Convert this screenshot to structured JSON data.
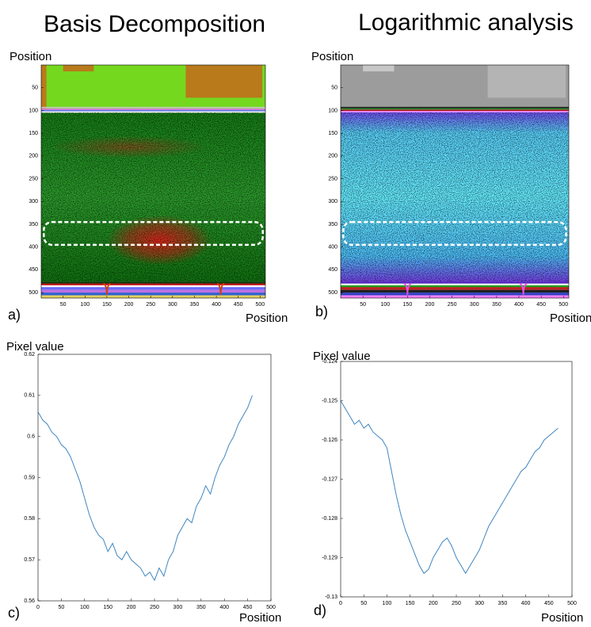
{
  "chart_data": [
    {
      "type": "image",
      "title": "Basis Decomposition",
      "label": "a)",
      "xlabel": "Position",
      "ylabel": "Position",
      "xlim": [
        0,
        512
      ],
      "ylim": [
        0,
        512
      ],
      "y_reversed": true,
      "xticks": [
        50,
        100,
        150,
        200,
        250,
        300,
        350,
        400,
        450,
        500
      ],
      "yticks": [
        50,
        100,
        150,
        200,
        250,
        300,
        350,
        400,
        450,
        500
      ]
    },
    {
      "type": "image",
      "title": "Logarithmic analysis",
      "label": "b)",
      "xlabel": "Position",
      "ylabel": "Position",
      "xlim": [
        0,
        512
      ],
      "ylim": [
        0,
        512
      ],
      "y_reversed": true,
      "xticks": [
        50,
        100,
        150,
        200,
        250,
        300,
        350,
        400,
        450,
        500
      ],
      "yticks": [
        50,
        100,
        150,
        200,
        250,
        300,
        350,
        400,
        450,
        500
      ]
    },
    {
      "type": "line",
      "label": "c)",
      "xlabel": "Position",
      "ylabel": "Pixel value",
      "color": "#3f86c0",
      "xlim": [
        0,
        500
      ],
      "ylim": [
        0.56,
        0.62
      ],
      "xticks": [
        0,
        50,
        100,
        150,
        200,
        250,
        300,
        350,
        400,
        450,
        500
      ],
      "yticks": [
        0.56,
        0.57,
        0.58,
        0.59,
        0.6,
        0.61,
        0.62
      ],
      "x": [
        0,
        10,
        20,
        30,
        40,
        50,
        60,
        70,
        80,
        90,
        100,
        110,
        120,
        130,
        140,
        150,
        160,
        170,
        180,
        190,
        200,
        210,
        220,
        230,
        240,
        250,
        260,
        270,
        280,
        290,
        300,
        310,
        320,
        330,
        340,
        350,
        360,
        370,
        380,
        390,
        400,
        410,
        420,
        430,
        440,
        450,
        460
      ],
      "values": [
        0.606,
        0.604,
        0.603,
        0.601,
        0.6,
        0.598,
        0.597,
        0.595,
        0.592,
        0.589,
        0.585,
        0.581,
        0.578,
        0.576,
        0.575,
        0.572,
        0.574,
        0.571,
        0.57,
        0.572,
        0.57,
        0.569,
        0.568,
        0.566,
        0.567,
        0.565,
        0.568,
        0.566,
        0.57,
        0.572,
        0.576,
        0.578,
        0.58,
        0.579,
        0.583,
        0.585,
        0.588,
        0.586,
        0.59,
        0.593,
        0.595,
        0.598,
        0.6,
        0.603,
        0.605,
        0.607,
        0.61
      ]
    },
    {
      "type": "line",
      "label": "d)",
      "xlabel": "Position",
      "ylabel": "Pixel value",
      "color": "#3f86c0",
      "xlim": [
        0,
        500
      ],
      "ylim": [
        -0.13,
        -0.124
      ],
      "xticks": [
        0,
        50,
        100,
        150,
        200,
        250,
        300,
        350,
        400,
        450,
        500
      ],
      "yticks": [
        -0.13,
        -0.129,
        -0.128,
        -0.127,
        -0.126,
        -0.125,
        -0.124
      ],
      "x": [
        0,
        10,
        20,
        30,
        40,
        50,
        60,
        70,
        80,
        90,
        100,
        110,
        120,
        130,
        140,
        150,
        160,
        170,
        180,
        190,
        200,
        210,
        220,
        230,
        240,
        250,
        260,
        270,
        280,
        290,
        300,
        310,
        320,
        330,
        340,
        350,
        360,
        370,
        380,
        390,
        400,
        410,
        420,
        430,
        440,
        450,
        460,
        470
      ],
      "values": [
        -0.125,
        -0.1252,
        -0.1254,
        -0.1256,
        -0.1255,
        -0.1257,
        -0.1256,
        -0.1258,
        -0.1259,
        -0.126,
        -0.1262,
        -0.1268,
        -0.1274,
        -0.1279,
        -0.1283,
        -0.1286,
        -0.1289,
        -0.1292,
        -0.1294,
        -0.1293,
        -0.129,
        -0.1288,
        -0.1286,
        -0.1285,
        -0.1287,
        -0.129,
        -0.1292,
        -0.1294,
        -0.1292,
        -0.129,
        -0.1288,
        -0.1285,
        -0.1282,
        -0.128,
        -0.1278,
        -0.1276,
        -0.1274,
        -0.1272,
        -0.127,
        -0.1268,
        -0.1267,
        -0.1265,
        -0.1263,
        -0.1262,
        -0.126,
        -0.1259,
        -0.1258,
        -0.1257
      ]
    }
  ]
}
